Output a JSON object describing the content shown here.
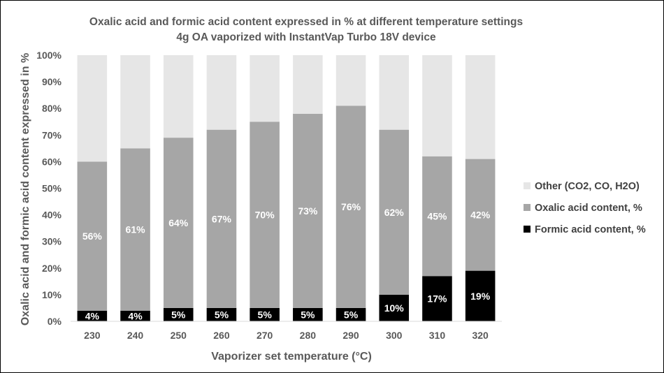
{
  "chart_data": {
    "type": "bar",
    "stacked": true,
    "title": "Oxalic acid and formic acid content expressed in % at different temperature settings",
    "subtitle": "4g OA vaporized with InstantVap Turbo 18V device",
    "xlabel": "Vaporizer set temperature (°C)",
    "ylabel": "Oxalic acid and formic acid content expressed in %",
    "ylim": [
      0,
      100
    ],
    "y_ticks": [
      "0%",
      "10%",
      "20%",
      "30%",
      "40%",
      "50%",
      "60%",
      "70%",
      "80%",
      "90%",
      "100%"
    ],
    "categories": [
      "230",
      "240",
      "250",
      "260",
      "270",
      "280",
      "290",
      "300",
      "310",
      "320"
    ],
    "legend_position": "right",
    "grid": false,
    "series": [
      {
        "name": "Formic acid content, %",
        "color": "#000000",
        "values": [
          4,
          4,
          5,
          5,
          5,
          5,
          5,
          10,
          17,
          19
        ],
        "labels": [
          "4%",
          "4%",
          "5%",
          "5%",
          "5%",
          "5%",
          "5%",
          "10%",
          "17%",
          "19%"
        ]
      },
      {
        "name": "Oxalic acid content, %",
        "color": "#a6a6a6",
        "values": [
          56,
          61,
          64,
          67,
          70,
          73,
          76,
          62,
          45,
          42
        ],
        "labels": [
          "56%",
          "61%",
          "64%",
          "67%",
          "70%",
          "73%",
          "76%",
          "62%",
          "45%",
          "42%"
        ]
      },
      {
        "name": "Other (CO2, CO, H2O)",
        "color": "#e6e6e6",
        "values": [
          40,
          35,
          31,
          28,
          25,
          22,
          19,
          28,
          38,
          39
        ],
        "labels": null
      }
    ],
    "legend_order": [
      "Other (CO2, CO, H2O)",
      "Oxalic acid content, %",
      "Formic acid content, %"
    ]
  }
}
